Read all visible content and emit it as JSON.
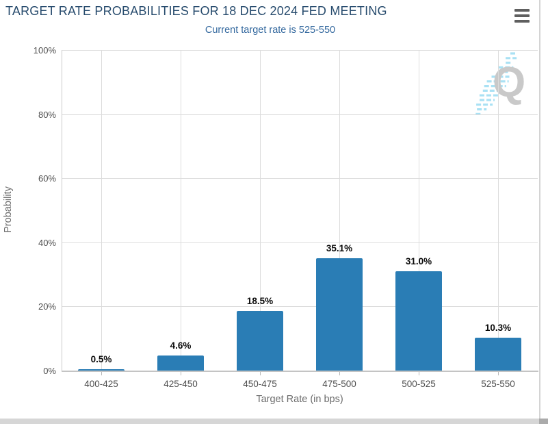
{
  "header": {
    "title": "TARGET RATE PROBABILITIES FOR 18 DEC 2024 FED MEETING",
    "subtitle": "Current target rate is 525-550"
  },
  "icons": {
    "menu": "hamburger-icon",
    "watermark": "quikstrike-q-logo",
    "watermark_letter": "Q"
  },
  "chart_data": {
    "type": "bar",
    "title": "TARGET RATE PROBABILITIES FOR 18 DEC 2024 FED MEETING",
    "subtitle": "Current target rate is 525-550",
    "categories": [
      "400-425",
      "425-450",
      "450-475",
      "475-500",
      "500-525",
      "525-550"
    ],
    "values": [
      0.5,
      4.6,
      18.5,
      35.1,
      31.0,
      10.3
    ],
    "data_labels": [
      "0.5%",
      "4.6%",
      "18.5%",
      "35.1%",
      "31.0%",
      "10.3%"
    ],
    "xlabel": "Target Rate (in bps)",
    "ylabel": "Probability",
    "ylim": [
      0,
      100
    ],
    "ytick_step": 20,
    "ytick_labels": [
      "0%",
      "20%",
      "40%",
      "60%",
      "80%",
      "100%"
    ],
    "grid": true,
    "legend_position": "none",
    "bar_color": "#2a7db5"
  },
  "colors": {
    "title": "#274b6d",
    "subtitle": "#33689e",
    "bar": "#2a7db5",
    "gridline": "#dcdcdc",
    "axis_label": "#4d4d4d",
    "axis_title": "#6b6b6b",
    "watermark_gray": "#c9c9c9",
    "watermark_blue": "#a9e1f4"
  }
}
